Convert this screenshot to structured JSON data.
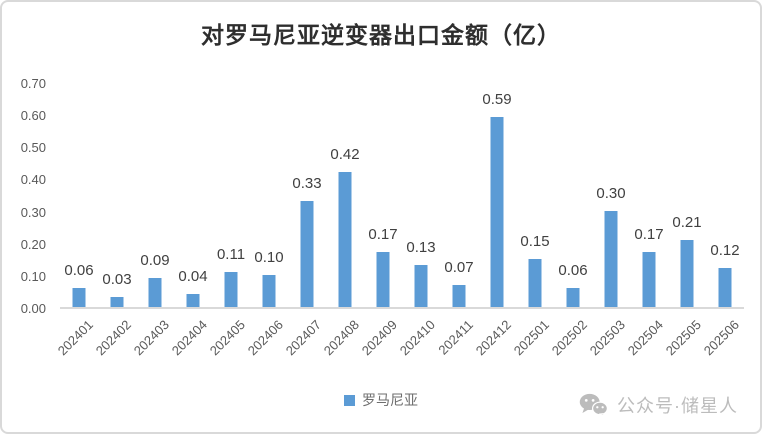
{
  "title": "对罗马尼亚逆变器出口金额（亿）",
  "legend": {
    "label": "罗马尼亚",
    "marker_color": "#5B9BD5"
  },
  "watermark": {
    "text": "公众号·储星人",
    "icon": "wechat-icon",
    "color": "#bcbcbc"
  },
  "colors": {
    "bar": "#5B9BD5",
    "axis_line": "#d9d9d9",
    "tick_label": "#595959",
    "data_label": "#404040",
    "frame_border": "#d9d9d9",
    "background": "#ffffff"
  },
  "chart_data": {
    "type": "bar",
    "title": "对罗马尼亚逆变器出口金额（亿）",
    "categories": [
      "202401",
      "202402",
      "202403",
      "202404",
      "202405",
      "202406",
      "202407",
      "202408",
      "202409",
      "202410",
      "202411",
      "202412",
      "202501",
      "202502",
      "202503",
      "202504",
      "202505",
      "202506"
    ],
    "values": [
      0.06,
      0.03,
      0.09,
      0.04,
      0.11,
      0.1,
      0.33,
      0.42,
      0.17,
      0.13,
      0.07,
      0.59,
      0.15,
      0.06,
      0.3,
      0.17,
      0.21,
      0.12
    ],
    "data_labels": [
      "0.06",
      "0.03",
      "0.09",
      "0.04",
      "0.11",
      "0.10",
      "0.33",
      "0.42",
      "0.17",
      "0.13",
      "0.07",
      "0.59",
      "0.15",
      "0.06",
      "0.30",
      "0.17",
      "0.21",
      "0.12"
    ],
    "series": [
      {
        "name": "罗马尼亚",
        "values": [
          0.06,
          0.03,
          0.09,
          0.04,
          0.11,
          0.1,
          0.33,
          0.42,
          0.17,
          0.13,
          0.07,
          0.59,
          0.15,
          0.06,
          0.3,
          0.17,
          0.21,
          0.12
        ]
      }
    ],
    "xlabel": "",
    "ylabel": "",
    "y_ticks": [
      "0.00",
      "0.10",
      "0.20",
      "0.30",
      "0.40",
      "0.50",
      "0.60",
      "0.70"
    ],
    "ylim": [
      0,
      0.7
    ],
    "grid": false,
    "legend_position": "bottom",
    "x_tick_rotation": -45
  }
}
